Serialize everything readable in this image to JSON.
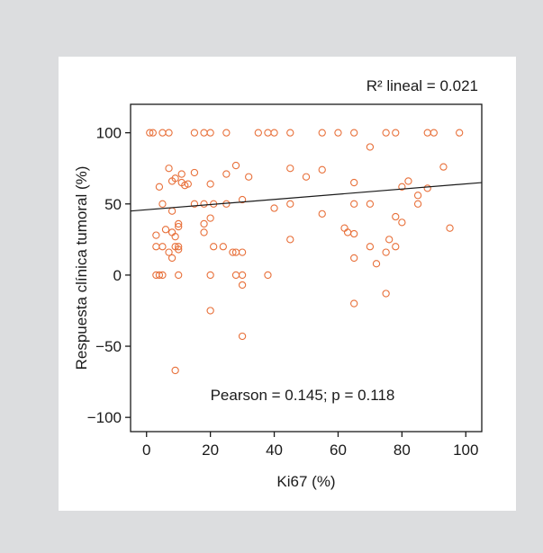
{
  "colors": {
    "background": "#dcdddf",
    "panel": "#ffffff",
    "point": "#e8703a",
    "regression_line": "#1a1a1a",
    "axis": "#1a1a1a"
  },
  "chart_data": {
    "type": "scatter",
    "title": "",
    "xlabel": "Ki67 (%)",
    "ylabel": "Respuesta clínica tumoral (%)",
    "xlim": [
      -5,
      105
    ],
    "ylim": [
      -110,
      120
    ],
    "xticks": [
      0,
      20,
      40,
      60,
      80,
      100
    ],
    "yticks": [
      -100,
      -50,
      0,
      50,
      100
    ],
    "xtick_labels": [
      "0",
      "20",
      "40",
      "60",
      "80",
      "100"
    ],
    "ytick_labels": [
      "−100",
      "−50",
      "0",
      "50",
      "100"
    ],
    "grid": false,
    "r2_text": "R² lineal = 0.021",
    "pearson_text": "Pearson = 0.145; p = 0.118",
    "fit_line": {
      "x": [
        -5,
        105
      ],
      "y": [
        45,
        65
      ]
    },
    "series": [
      {
        "x": [
          1,
          2,
          5,
          7,
          15,
          18,
          20,
          25,
          35,
          38,
          40,
          45,
          55,
          60,
          65,
          75,
          78,
          88,
          90,
          98,
          70,
          93,
          7,
          28,
          32,
          50,
          55,
          45,
          65,
          4,
          8,
          11,
          12,
          13,
          15,
          20,
          25,
          27,
          30,
          80,
          82,
          85,
          88,
          9,
          11,
          5,
          8,
          10,
          15,
          18,
          21,
          25,
          30,
          40,
          45,
          55,
          62,
          65,
          70,
          78,
          85,
          3,
          6,
          8,
          9,
          10,
          18,
          18,
          20,
          21,
          24,
          28,
          7,
          8,
          9,
          10,
          10,
          45,
          63,
          65,
          76,
          78,
          80,
          95,
          3,
          5,
          10,
          20,
          28,
          30,
          70,
          75,
          65,
          3,
          4,
          5,
          38,
          72,
          30,
          75,
          65,
          20,
          30,
          9
        ],
        "y": [
          100,
          100,
          100,
          100,
          100,
          100,
          100,
          100,
          100,
          100,
          100,
          100,
          100,
          100,
          100,
          100,
          100,
          100,
          100,
          100,
          90,
          76,
          75,
          77,
          69,
          69,
          74,
          75,
          65,
          62,
          66,
          71,
          63,
          64,
          72,
          64,
          71,
          16,
          16,
          62,
          66,
          56,
          61,
          68,
          65,
          50,
          45,
          36,
          50,
          50,
          50,
          50,
          53,
          47,
          50,
          43,
          33,
          50,
          50,
          41,
          50,
          28,
          32,
          30,
          27,
          34,
          30,
          36,
          40,
          20,
          20,
          16,
          16,
          12,
          20,
          18,
          20,
          25,
          30,
          29,
          25,
          20,
          37,
          33,
          0,
          0,
          0,
          0,
          0,
          0,
          20,
          16,
          12,
          20,
          0,
          20,
          0,
          8,
          -7,
          -13,
          -20,
          -25,
          -43,
          -67
        ]
      }
    ]
  }
}
